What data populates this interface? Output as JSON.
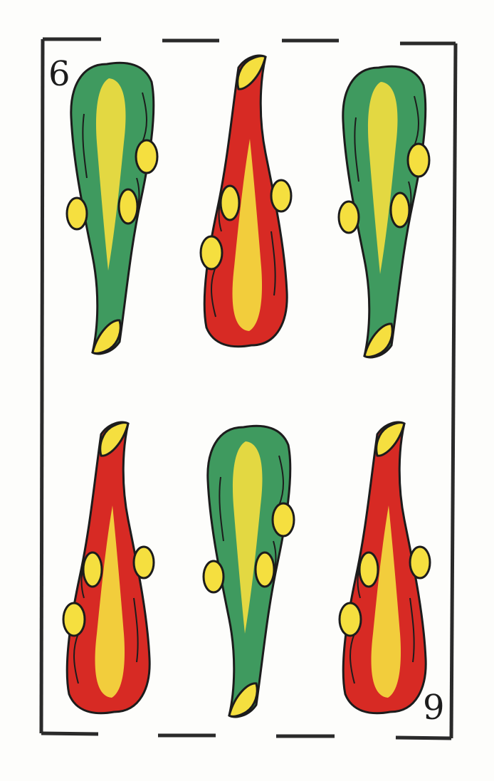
{
  "card": {
    "corner_index_top": "6",
    "corner_index_bottom": "9",
    "suit_icon": "club-icon",
    "pip_count": 6
  },
  "colors": {
    "green": "#3f9a5f",
    "red": "#d72a24",
    "yellow": "#f5df3f",
    "outline": "#1c1c1c"
  }
}
